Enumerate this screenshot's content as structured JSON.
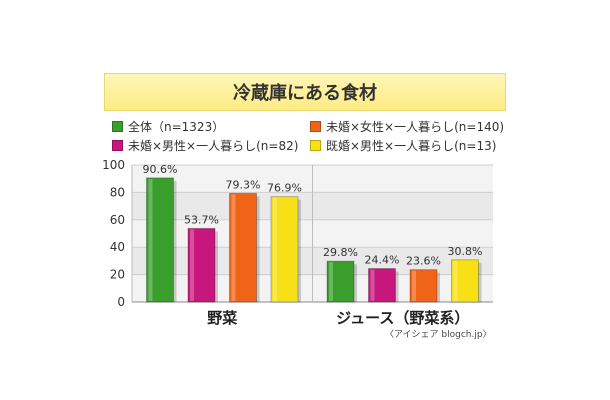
{
  "chart_data": {
    "type": "bar",
    "title": "冷蔵庫にある食材",
    "categories": [
      "野菜",
      "ジュース（野菜系）"
    ],
    "series": [
      {
        "name": "全体（n=1323）",
        "color": "#3a9e2c",
        "values": [
          90.6,
          29.8
        ]
      },
      {
        "name": "未婚×男性×一人暮らし(n=82)",
        "color": "#c8177c",
        "values": [
          53.7,
          24.4
        ]
      },
      {
        "name": "未婚×女性×一人暮らし(n=140)",
        "color": "#f06418",
        "values": [
          79.3,
          23.6
        ]
      },
      {
        "name": "既婚×男性×一人暮らし(n=13)",
        "color": "#f7e116",
        "values": [
          76.9,
          30.8
        ]
      }
    ],
    "ylim": [
      0,
      100
    ],
    "yticks": [
      0,
      20,
      40,
      60,
      80,
      100
    ],
    "value_suffix": "%",
    "xlabel": "",
    "ylabel": "",
    "grid": true,
    "legend_placement": "top"
  },
  "source": "〈アイシェア blogch.jp〉"
}
